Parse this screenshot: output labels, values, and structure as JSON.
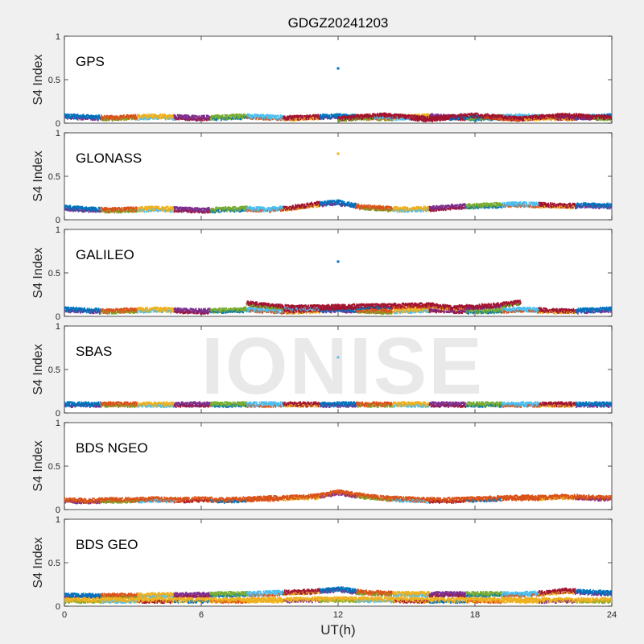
{
  "chart_data": {
    "type": "scatter",
    "title": "GDGZ20241203",
    "xlabel": "UT(h)",
    "xlim": [
      0,
      24
    ],
    "xticks": [
      "0",
      "6",
      "12",
      "18",
      "24"
    ],
    "watermark": "IONISE",
    "colors": [
      "#0072bd",
      "#d95319",
      "#edb120",
      "#7e2f8e",
      "#77ac30",
      "#4dbeee",
      "#a2142f"
    ],
    "panels": [
      {
        "label": "GPS",
        "ylabel": "S4 Index",
        "ylim": [
          0,
          1
        ],
        "yticks": [
          "0",
          "0.5",
          "1"
        ],
        "series": [
          {
            "color": "#edb120",
            "values": [
              [
                0.0,
                0.08
              ],
              [
                1.0,
                0.07
              ],
              [
                2.0,
                0.06
              ],
              [
                3.0,
                0.07
              ],
              [
                4.0,
                0.08
              ],
              [
                5.0,
                0.07
              ],
              [
                6.0,
                0.06
              ],
              [
                7.0,
                0.07
              ],
              [
                8.0,
                0.08
              ],
              [
                9.0,
                0.07
              ],
              [
                10.0,
                0.06
              ],
              [
                11.0,
                0.07
              ],
              [
                12.0,
                0.08
              ],
              [
                13.0,
                0.07
              ],
              [
                14.0,
                0.06
              ],
              [
                15.0,
                0.07
              ],
              [
                16.0,
                0.08
              ],
              [
                17.0,
                0.07
              ],
              [
                18.0,
                0.06
              ],
              [
                19.0,
                0.07
              ],
              [
                20.0,
                0.08
              ],
              [
                21.0,
                0.07
              ],
              [
                22.0,
                0.06
              ],
              [
                23.0,
                0.07
              ],
              [
                24.0,
                0.08
              ]
            ]
          },
          {
            "color": "#a2142f",
            "values": [
              [
                12.0,
                0.05
              ],
              [
                13.0,
                0.07
              ],
              [
                14.0,
                0.09
              ],
              [
                15.0,
                0.07
              ],
              [
                16.0,
                0.05
              ],
              [
                17.0,
                0.07
              ],
              [
                18.0,
                0.09
              ],
              [
                19.0,
                0.07
              ],
              [
                20.0,
                0.05
              ],
              [
                21.0,
                0.07
              ],
              [
                22.0,
                0.09
              ],
              [
                23.0,
                0.07
              ],
              [
                24.0,
                0.06
              ]
            ]
          },
          {
            "color": "#0072bd",
            "values": [
              [
                12.0,
                0.63
              ]
            ]
          }
        ]
      },
      {
        "label": "GLONASS",
        "ylabel": "S4 Index",
        "ylim": [
          0,
          1
        ],
        "yticks": [
          "0",
          "0.5",
          "1"
        ],
        "series": [
          {
            "color": "#d95319",
            "values": [
              [
                0.0,
                0.14
              ],
              [
                1.0,
                0.12
              ],
              [
                2.0,
                0.11
              ],
              [
                3.0,
                0.12
              ],
              [
                4.0,
                0.13
              ],
              [
                5.0,
                0.12
              ],
              [
                6.0,
                0.11
              ],
              [
                7.0,
                0.12
              ],
              [
                8.0,
                0.13
              ],
              [
                9.0,
                0.12
              ],
              [
                10.0,
                0.14
              ],
              [
                11.0,
                0.18
              ],
              [
                12.0,
                0.2
              ],
              [
                13.0,
                0.15
              ],
              [
                14.0,
                0.13
              ],
              [
                15.0,
                0.12
              ],
              [
                16.0,
                0.13
              ],
              [
                17.0,
                0.15
              ],
              [
                18.0,
                0.16
              ],
              [
                19.0,
                0.17
              ],
              [
                20.0,
                0.18
              ],
              [
                21.0,
                0.17
              ],
              [
                22.0,
                0.16
              ],
              [
                23.0,
                0.17
              ],
              [
                24.0,
                0.16
              ]
            ]
          },
          {
            "color": "#edb120",
            "values": [
              [
                12.0,
                0.76
              ]
            ]
          }
        ]
      },
      {
        "label": "GALILEO",
        "ylabel": "S4 Index",
        "ylim": [
          0,
          1
        ],
        "yticks": [
          "0",
          "0.5",
          "1"
        ],
        "series": [
          {
            "color": "#4dbeee",
            "values": [
              [
                0.0,
                0.08
              ],
              [
                1.0,
                0.07
              ],
              [
                2.0,
                0.06
              ],
              [
                3.0,
                0.07
              ],
              [
                4.0,
                0.08
              ],
              [
                5.0,
                0.07
              ],
              [
                6.0,
                0.06
              ],
              [
                7.0,
                0.07
              ],
              [
                8.0,
                0.08
              ],
              [
                9.0,
                0.07
              ],
              [
                10.0,
                0.06
              ],
              [
                11.0,
                0.07
              ],
              [
                12.0,
                0.08
              ],
              [
                13.0,
                0.07
              ],
              [
                14.0,
                0.06
              ],
              [
                15.0,
                0.07
              ],
              [
                16.0,
                0.08
              ],
              [
                17.0,
                0.07
              ],
              [
                18.0,
                0.06
              ],
              [
                19.0,
                0.07
              ],
              [
                20.0,
                0.08
              ],
              [
                21.0,
                0.07
              ],
              [
                22.0,
                0.06
              ],
              [
                23.0,
                0.07
              ],
              [
                24.0,
                0.08
              ]
            ]
          },
          {
            "color": "#a2142f",
            "values": [
              [
                8.0,
                0.15
              ],
              [
                9.0,
                0.12
              ],
              [
                10.0,
                0.1
              ],
              [
                16.0,
                0.13
              ],
              [
                17.0,
                0.1
              ],
              [
                18.0,
                0.11
              ],
              [
                19.0,
                0.13
              ],
              [
                20.0,
                0.16
              ]
            ]
          },
          {
            "color": "#0072bd",
            "values": [
              [
                12.0,
                0.63
              ]
            ]
          }
        ]
      },
      {
        "label": "SBAS",
        "ylabel": "S4 Index",
        "ylim": [
          0,
          1
        ],
        "yticks": [
          "0",
          "0.5",
          "1"
        ],
        "series": [
          {
            "color": "#4dbeee",
            "values": [
              [
                0.0,
                0.1
              ],
              [
                1.0,
                0.1
              ],
              [
                2.0,
                0.1
              ],
              [
                3.0,
                0.1
              ],
              [
                4.0,
                0.1
              ],
              [
                5.0,
                0.1
              ],
              [
                6.0,
                0.1
              ],
              [
                7.0,
                0.1
              ],
              [
                8.0,
                0.1
              ],
              [
                9.0,
                0.1
              ],
              [
                10.0,
                0.1
              ],
              [
                11.0,
                0.1
              ],
              [
                12.0,
                0.1
              ],
              [
                13.0,
                0.1
              ],
              [
                14.0,
                0.1
              ],
              [
                15.0,
                0.1
              ],
              [
                16.0,
                0.1
              ],
              [
                17.0,
                0.1
              ],
              [
                18.0,
                0.1
              ],
              [
                19.0,
                0.1
              ],
              [
                20.0,
                0.1
              ],
              [
                21.0,
                0.1
              ],
              [
                22.0,
                0.1
              ],
              [
                23.0,
                0.1
              ],
              [
                24.0,
                0.1
              ]
            ]
          },
          {
            "color": "#4dbeee",
            "values": [
              [
                12.0,
                0.64
              ]
            ]
          }
        ]
      },
      {
        "label": "BDS NGEO",
        "ylabel": "S4 Index",
        "ylim": [
          0,
          1
        ],
        "yticks": [
          "0",
          "0.5",
          "1"
        ],
        "series": [
          {
            "color": "#d95319",
            "values": [
              [
                0.0,
                0.11
              ],
              [
                1.0,
                0.1
              ],
              [
                2.0,
                0.11
              ],
              [
                3.0,
                0.11
              ],
              [
                4.0,
                0.12
              ],
              [
                5.0,
                0.11
              ],
              [
                6.0,
                0.12
              ],
              [
                7.0,
                0.11
              ],
              [
                8.0,
                0.12
              ],
              [
                9.0,
                0.13
              ],
              [
                10.0,
                0.14
              ],
              [
                11.0,
                0.15
              ],
              [
                12.0,
                0.2
              ],
              [
                13.0,
                0.16
              ],
              [
                14.0,
                0.13
              ],
              [
                15.0,
                0.12
              ],
              [
                16.0,
                0.11
              ],
              [
                17.0,
                0.11
              ],
              [
                18.0,
                0.12
              ],
              [
                19.0,
                0.13
              ],
              [
                20.0,
                0.14
              ],
              [
                21.0,
                0.14
              ],
              [
                22.0,
                0.15
              ],
              [
                23.0,
                0.14
              ],
              [
                24.0,
                0.13
              ]
            ]
          }
        ]
      },
      {
        "label": "BDS GEO",
        "ylabel": "S4 Index",
        "ylim": [
          0,
          1
        ],
        "yticks": [
          "0",
          "0.5",
          "1"
        ],
        "series": [
          {
            "color": "#7e2f8e",
            "values": [
              [
                0.0,
                0.12
              ],
              [
                1.0,
                0.12
              ],
              [
                2.0,
                0.12
              ],
              [
                3.0,
                0.12
              ],
              [
                4.0,
                0.13
              ],
              [
                5.0,
                0.13
              ],
              [
                6.0,
                0.13
              ],
              [
                7.0,
                0.14
              ],
              [
                8.0,
                0.14
              ],
              [
                9.0,
                0.15
              ],
              [
                10.0,
                0.16
              ],
              [
                11.0,
                0.17
              ],
              [
                12.0,
                0.2
              ],
              [
                13.0,
                0.16
              ],
              [
                14.0,
                0.15
              ],
              [
                15.0,
                0.14
              ],
              [
                16.0,
                0.14
              ],
              [
                17.0,
                0.14
              ],
              [
                18.0,
                0.14
              ],
              [
                19.0,
                0.14
              ],
              [
                20.0,
                0.14
              ],
              [
                21.0,
                0.15
              ],
              [
                22.0,
                0.18
              ],
              [
                23.0,
                0.16
              ],
              [
                24.0,
                0.15
              ]
            ]
          },
          {
            "color": "#edb120",
            "values": [
              [
                0.0,
                0.07
              ],
              [
                4.0,
                0.07
              ],
              [
                8.0,
                0.07
              ],
              [
                12.0,
                0.08
              ],
              [
                16.0,
                0.07
              ],
              [
                20.0,
                0.07
              ],
              [
                24.0,
                0.07
              ]
            ]
          }
        ]
      }
    ]
  }
}
